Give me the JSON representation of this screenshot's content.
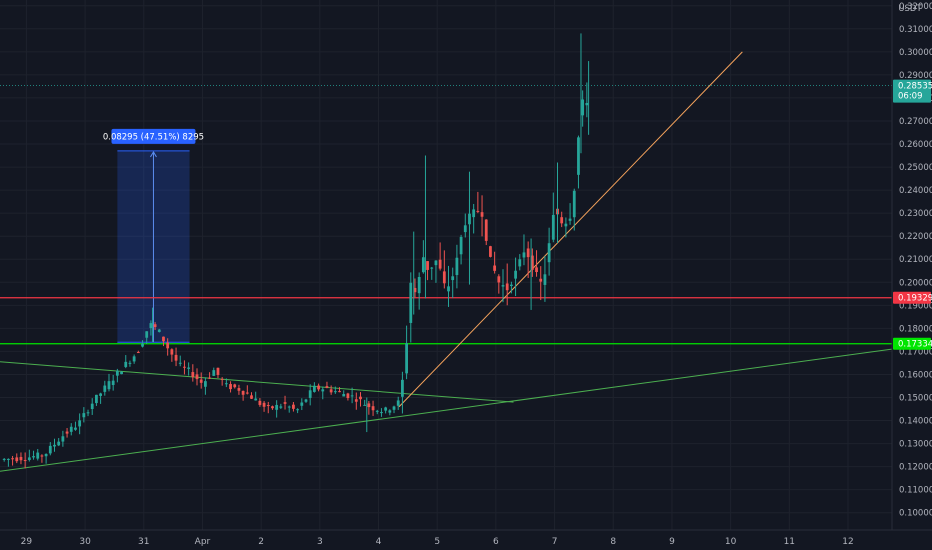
{
  "chart_data": {
    "type": "candlestick",
    "currency": "USDT",
    "y_ticks": [
      "0.10000",
      "0.11000",
      "0.12000",
      "0.13000",
      "0.14000",
      "0.15000",
      "0.16000",
      "0.17000",
      "0.18000",
      "0.19000",
      "0.20000",
      "0.21000",
      "0.22000",
      "0.23000",
      "0.24000",
      "0.25000",
      "0.26000",
      "0.27000",
      "0.28000",
      "0.29000",
      "0.30000",
      "0.31000",
      "0.32000"
    ],
    "y_tick_values": [
      0.1,
      0.11,
      0.12,
      0.13,
      0.14,
      0.15,
      0.16,
      0.17,
      0.18,
      0.19,
      0.2,
      0.21,
      0.22,
      0.23,
      0.24,
      0.25,
      0.26,
      0.27,
      0.28,
      0.29,
      0.3,
      0.31,
      0.32
    ],
    "ylim": [
      0.0925,
      0.3225
    ],
    "x_ticks": [
      {
        "label": "29",
        "x": 0
      },
      {
        "label": "30",
        "x": 1
      },
      {
        "label": "31",
        "x": 2
      },
      {
        "label": "Apr",
        "x": 3
      },
      {
        "label": "2",
        "x": 4
      },
      {
        "label": "3",
        "x": 5
      },
      {
        "label": "4",
        "x": 6
      },
      {
        "label": "5",
        "x": 7
      },
      {
        "label": "6",
        "x": 8
      },
      {
        "label": "7",
        "x": 9
      },
      {
        "label": "8",
        "x": 10
      },
      {
        "label": "9",
        "x": 11
      },
      {
        "label": "10",
        "x": 12
      },
      {
        "label": "11",
        "x": 13
      },
      {
        "label": "12",
        "x": 14
      }
    ],
    "xlim": [
      -0.45,
      14.75
    ],
    "up_color": "#26a69a",
    "down_color": "#ef5350",
    "price_path": [
      [
        -0.45,
        0.123
      ],
      [
        0.0,
        0.124
      ],
      [
        0.3,
        0.125
      ],
      [
        0.6,
        0.133
      ],
      [
        0.9,
        0.139
      ],
      [
        1.1,
        0.147
      ],
      [
        1.4,
        0.156
      ],
      [
        1.6,
        0.162
      ],
      [
        1.9,
        0.17
      ],
      [
        2.1,
        0.182
      ],
      [
        2.25,
        0.179
      ],
      [
        2.4,
        0.172
      ],
      [
        2.6,
        0.164
      ],
      [
        2.8,
        0.161
      ],
      [
        3.0,
        0.156
      ],
      [
        3.2,
        0.162
      ],
      [
        3.4,
        0.155
      ],
      [
        3.6,
        0.154
      ],
      [
        3.8,
        0.151
      ],
      [
        4.1,
        0.145
      ],
      [
        4.4,
        0.147
      ],
      [
        4.6,
        0.144
      ],
      [
        4.9,
        0.154
      ],
      [
        5.1,
        0.154
      ],
      [
        5.35,
        0.152
      ],
      [
        5.6,
        0.15
      ],
      [
        5.85,
        0.146
      ],
      [
        6.1,
        0.144
      ],
      [
        6.35,
        0.148
      ],
      [
        6.45,
        0.164
      ],
      [
        6.55,
        0.2
      ],
      [
        6.65,
        0.194
      ],
      [
        6.75,
        0.212
      ],
      [
        6.85,
        0.205
      ],
      [
        7.0,
        0.21
      ],
      [
        7.15,
        0.196
      ],
      [
        7.3,
        0.205
      ],
      [
        7.45,
        0.225
      ],
      [
        7.6,
        0.23
      ],
      [
        7.75,
        0.232
      ],
      [
        7.9,
        0.21
      ],
      [
        8.05,
        0.2
      ],
      [
        8.2,
        0.197
      ],
      [
        8.35,
        0.205
      ],
      [
        8.5,
        0.215
      ],
      [
        8.65,
        0.205
      ],
      [
        8.8,
        0.198
      ],
      [
        9.0,
        0.232
      ],
      [
        9.15,
        0.225
      ],
      [
        9.3,
        0.23
      ],
      [
        9.4,
        0.26
      ],
      [
        9.45,
        0.28
      ],
      [
        9.52,
        0.275
      ],
      [
        9.6,
        0.2853
      ]
    ],
    "spikes": [
      {
        "x": 6.6,
        "low": 0.186,
        "high": 0.222
      },
      {
        "x": 6.8,
        "low": 0.193,
        "high": 0.255
      },
      {
        "x": 7.55,
        "low": 0.199,
        "high": 0.248
      },
      {
        "x": 8.6,
        "low": 0.188,
        "high": 0.219
      },
      {
        "x": 9.05,
        "low": 0.217,
        "high": 0.252
      },
      {
        "x": 9.45,
        "low": 0.256,
        "high": 0.308
      },
      {
        "x": 9.58,
        "low": 0.264,
        "high": 0.296
      },
      {
        "x": 5.8,
        "low": 0.135,
        "high": 0.15
      },
      {
        "x": 2.15,
        "low": 0.174,
        "high": 0.189
      }
    ],
    "lines": [
      {
        "name": "rising-support-line",
        "color": "#4caf50",
        "p1": [
          -0.45,
          0.118
        ],
        "p2": [
          14.75,
          0.171
        ]
      },
      {
        "name": "descending-trendline",
        "color": "#4caf50",
        "p1": [
          -0.45,
          0.1655
        ],
        "p2": [
          8.3,
          0.148
        ]
      },
      {
        "name": "breakout-trendline",
        "color": "#f5a35c",
        "p1": [
          6.35,
          0.146
        ],
        "p2": [
          12.2,
          0.3
        ]
      }
    ],
    "horizontal_levels": [
      {
        "name": "resistance-level",
        "value": 0.19329,
        "label": "0.19329",
        "color": "#f23645"
      },
      {
        "name": "support-level",
        "value": 0.17334,
        "label": "0.17334",
        "color": "#00e600"
      }
    ],
    "current_price": {
      "value": 0.28535,
      "label": "0.28535",
      "countdown": "06:09",
      "color": "#26a69a"
    },
    "measure": {
      "x1": 1.55,
      "x2": 2.78,
      "y_low": 0.174,
      "y_high": 0.257,
      "label": "0.08295 (47.51%) 8295"
    }
  }
}
